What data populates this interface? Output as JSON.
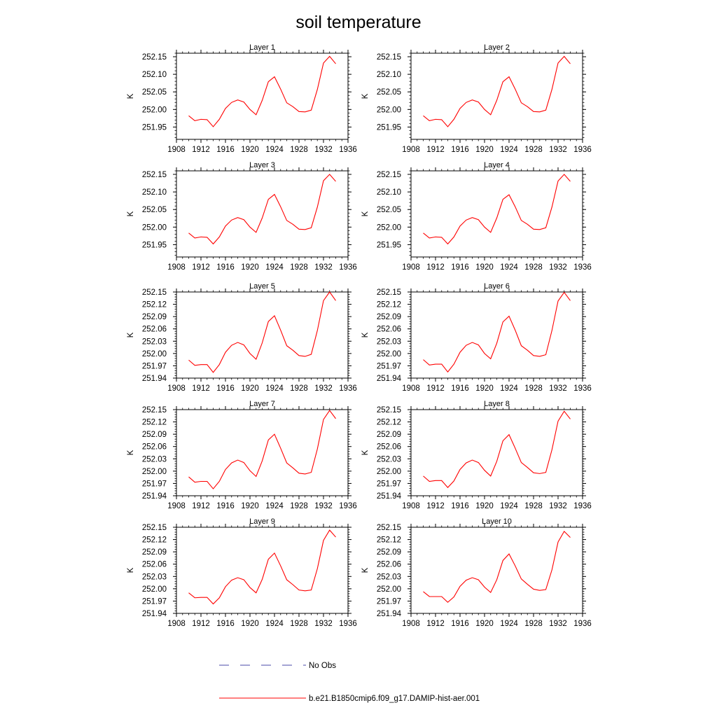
{
  "figure_title": "soil temperature",
  "colors": {
    "model": "#ff0000",
    "obs": "#4a4aa8",
    "axis": "#000000"
  },
  "legend": [
    {
      "label": "No Obs",
      "style": "dashed",
      "color": "#4a4aa8"
    },
    {
      "label": "b.e21.B1850cmip6.f09_g17.DAMIP-hist-aer.001",
      "style": "solid",
      "color": "#ff0000"
    }
  ],
  "chart_data": [
    {
      "type": "line",
      "title": "Layer 1",
      "ylabel": "K",
      "xlim": [
        1908,
        1936
      ],
      "ylim": [
        251.915,
        252.16
      ],
      "xticks": [
        "1908",
        "1912",
        "1916",
        "1920",
        "1924",
        "1928",
        "1932",
        "1936"
      ],
      "yticks": [
        "251.95",
        "252.00",
        "252.05",
        "252.10",
        "252.15"
      ],
      "series": [
        {
          "x": [
            1910,
            1911,
            1912,
            1913,
            1914,
            1915,
            1916,
            1917,
            1918,
            1919,
            1920,
            1921,
            1922,
            1923,
            1924,
            1925,
            1926,
            1927,
            1928,
            1929,
            1930,
            1931,
            1932,
            1933,
            1934
          ],
          "y": [
            251.982,
            251.968,
            251.972,
            251.971,
            251.951,
            251.972,
            252.003,
            252.02,
            252.027,
            252.021,
            252.0,
            251.985,
            252.026,
            252.079,
            252.093,
            252.058,
            252.019,
            252.008,
            251.994,
            251.993,
            251.998,
            252.057,
            252.132,
            252.151,
            252.13
          ]
        }
      ]
    },
    {
      "type": "line",
      "title": "Layer 2",
      "ylabel": "K",
      "xlim": [
        1908,
        1936
      ],
      "ylim": [
        251.915,
        252.16
      ],
      "xticks": [
        "1908",
        "1912",
        "1916",
        "1920",
        "1924",
        "1928",
        "1932",
        "1936"
      ],
      "yticks": [
        "251.95",
        "252.00",
        "252.05",
        "252.10",
        "252.15"
      ],
      "series": [
        {
          "x": [
            1910,
            1911,
            1912,
            1913,
            1914,
            1915,
            1916,
            1917,
            1918,
            1919,
            1920,
            1921,
            1922,
            1923,
            1924,
            1925,
            1926,
            1927,
            1928,
            1929,
            1930,
            1931,
            1932,
            1933,
            1934
          ],
          "y": [
            251.982,
            251.968,
            251.972,
            251.971,
            251.951,
            251.972,
            252.003,
            252.02,
            252.027,
            252.021,
            252.0,
            251.985,
            252.026,
            252.079,
            252.093,
            252.058,
            252.019,
            252.008,
            251.994,
            251.993,
            251.998,
            252.057,
            252.132,
            252.151,
            252.13
          ]
        }
      ]
    },
    {
      "type": "line",
      "title": "Layer 3",
      "ylabel": "K",
      "xlim": [
        1908,
        1936
      ],
      "ylim": [
        251.915,
        252.16
      ],
      "xticks": [
        "1908",
        "1912",
        "1916",
        "1920",
        "1924",
        "1928",
        "1932",
        "1936"
      ],
      "yticks": [
        "251.95",
        "252.00",
        "252.05",
        "252.10",
        "252.15"
      ],
      "series": [
        {
          "x": [
            1910,
            1911,
            1912,
            1913,
            1914,
            1915,
            1916,
            1917,
            1918,
            1919,
            1920,
            1921,
            1922,
            1923,
            1924,
            1925,
            1926,
            1927,
            1928,
            1929,
            1930,
            1931,
            1932,
            1933,
            1934
          ],
          "y": [
            251.983,
            251.969,
            251.972,
            251.971,
            251.952,
            251.972,
            252.003,
            252.02,
            252.027,
            252.021,
            252.0,
            251.985,
            252.026,
            252.079,
            252.093,
            252.058,
            252.019,
            252.008,
            251.994,
            251.993,
            251.998,
            252.057,
            252.132,
            252.15,
            252.13
          ]
        }
      ]
    },
    {
      "type": "line",
      "title": "Layer 4",
      "ylabel": "K",
      "xlim": [
        1908,
        1936
      ],
      "ylim": [
        251.915,
        252.16
      ],
      "xticks": [
        "1908",
        "1912",
        "1916",
        "1920",
        "1924",
        "1928",
        "1932",
        "1936"
      ],
      "yticks": [
        "251.95",
        "252.00",
        "252.05",
        "252.10",
        "252.15"
      ],
      "series": [
        {
          "x": [
            1910,
            1911,
            1912,
            1913,
            1914,
            1915,
            1916,
            1917,
            1918,
            1919,
            1920,
            1921,
            1922,
            1923,
            1924,
            1925,
            1926,
            1927,
            1928,
            1929,
            1930,
            1931,
            1932,
            1933,
            1934
          ],
          "y": [
            251.983,
            251.969,
            251.972,
            251.971,
            251.952,
            251.972,
            252.003,
            252.02,
            252.027,
            252.021,
            252.0,
            251.985,
            252.026,
            252.079,
            252.092,
            252.058,
            252.019,
            252.008,
            251.994,
            251.993,
            251.998,
            252.057,
            252.131,
            252.15,
            252.13
          ]
        }
      ]
    },
    {
      "type": "line",
      "title": "Layer 5",
      "ylabel": "K",
      "xlim": [
        1908,
        1936
      ],
      "ylim": [
        251.94,
        252.15
      ],
      "xticks": [
        "1908",
        "1912",
        "1916",
        "1920",
        "1924",
        "1928",
        "1932",
        "1936"
      ],
      "yticks": [
        "251.94",
        "251.97",
        "252.00",
        "252.03",
        "252.06",
        "252.09",
        "252.12",
        "252.15"
      ],
      "series": [
        {
          "x": [
            1910,
            1911,
            1912,
            1913,
            1914,
            1915,
            1916,
            1917,
            1918,
            1919,
            1920,
            1921,
            1922,
            1923,
            1924,
            1925,
            1926,
            1927,
            1928,
            1929,
            1930,
            1931,
            1932,
            1933,
            1934
          ],
          "y": [
            251.984,
            251.971,
            251.973,
            251.973,
            251.954,
            251.973,
            252.003,
            252.02,
            252.027,
            252.021,
            252.0,
            251.986,
            252.026,
            252.078,
            252.092,
            252.057,
            252.019,
            252.008,
            251.995,
            251.993,
            251.998,
            252.056,
            252.129,
            252.15,
            252.129
          ]
        }
      ]
    },
    {
      "type": "line",
      "title": "Layer 6",
      "ylabel": "K",
      "xlim": [
        1908,
        1936
      ],
      "ylim": [
        251.94,
        252.15
      ],
      "xticks": [
        "1908",
        "1912",
        "1916",
        "1920",
        "1924",
        "1928",
        "1932",
        "1936"
      ],
      "yticks": [
        "251.94",
        "251.97",
        "252.00",
        "252.03",
        "252.06",
        "252.09",
        "252.12",
        "252.15"
      ],
      "series": [
        {
          "x": [
            1910,
            1911,
            1912,
            1913,
            1914,
            1915,
            1916,
            1917,
            1918,
            1919,
            1920,
            1921,
            1922,
            1923,
            1924,
            1925,
            1926,
            1927,
            1928,
            1929,
            1930,
            1931,
            1932,
            1933,
            1934
          ],
          "y": [
            251.985,
            251.972,
            251.974,
            251.974,
            251.955,
            251.974,
            252.003,
            252.02,
            252.027,
            252.021,
            252.0,
            251.987,
            252.025,
            252.077,
            252.091,
            252.057,
            252.019,
            252.008,
            251.995,
            251.993,
            251.997,
            252.056,
            252.128,
            252.149,
            252.129
          ]
        }
      ]
    },
    {
      "type": "line",
      "title": "Layer 7",
      "ylabel": "K",
      "xlim": [
        1908,
        1936
      ],
      "ylim": [
        251.94,
        252.15
      ],
      "xticks": [
        "1908",
        "1912",
        "1916",
        "1920",
        "1924",
        "1928",
        "1932",
        "1936"
      ],
      "yticks": [
        "251.94",
        "251.97",
        "252.00",
        "252.03",
        "252.06",
        "252.09",
        "252.12",
        "252.15"
      ],
      "series": [
        {
          "x": [
            1910,
            1911,
            1912,
            1913,
            1914,
            1915,
            1916,
            1917,
            1918,
            1919,
            1920,
            1921,
            1922,
            1923,
            1924,
            1925,
            1926,
            1927,
            1928,
            1929,
            1930,
            1931,
            1932,
            1933,
            1934
          ],
          "y": [
            251.986,
            251.973,
            251.975,
            251.975,
            251.957,
            251.975,
            252.004,
            252.02,
            252.027,
            252.021,
            252.001,
            251.987,
            252.025,
            252.076,
            252.09,
            252.056,
            252.02,
            252.008,
            251.995,
            251.993,
            251.997,
            252.054,
            252.126,
            252.148,
            252.128
          ]
        }
      ]
    },
    {
      "type": "line",
      "title": "Layer 8",
      "ylabel": "K",
      "xlim": [
        1908,
        1936
      ],
      "ylim": [
        251.94,
        252.15
      ],
      "xticks": [
        "1908",
        "1912",
        "1916",
        "1920",
        "1924",
        "1928",
        "1932",
        "1936"
      ],
      "yticks": [
        "251.94",
        "251.97",
        "252.00",
        "252.03",
        "252.06",
        "252.09",
        "252.12",
        "252.15"
      ],
      "series": [
        {
          "x": [
            1910,
            1911,
            1912,
            1913,
            1914,
            1915,
            1916,
            1917,
            1918,
            1919,
            1920,
            1921,
            1922,
            1923,
            1924,
            1925,
            1926,
            1927,
            1928,
            1929,
            1930,
            1931,
            1932,
            1933,
            1934
          ],
          "y": [
            251.988,
            251.975,
            251.977,
            251.977,
            251.96,
            251.976,
            252.004,
            252.02,
            252.027,
            252.021,
            252.002,
            251.988,
            252.024,
            252.074,
            252.089,
            252.056,
            252.021,
            252.009,
            251.996,
            251.994,
            251.997,
            252.052,
            252.122,
            252.146,
            252.127
          ]
        }
      ]
    },
    {
      "type": "line",
      "title": "Layer 9",
      "ylabel": "K",
      "xlim": [
        1908,
        1936
      ],
      "ylim": [
        251.94,
        252.15
      ],
      "xticks": [
        "1908",
        "1912",
        "1916",
        "1920",
        "1924",
        "1928",
        "1932",
        "1936"
      ],
      "yticks": [
        "251.94",
        "251.97",
        "252.00",
        "252.03",
        "252.06",
        "252.09",
        "252.12",
        "252.15"
      ],
      "series": [
        {
          "x": [
            1910,
            1911,
            1912,
            1913,
            1914,
            1915,
            1916,
            1917,
            1918,
            1919,
            1920,
            1921,
            1922,
            1923,
            1924,
            1925,
            1926,
            1927,
            1928,
            1929,
            1930,
            1931,
            1932,
            1933,
            1934
          ],
          "y": [
            251.99,
            251.978,
            251.979,
            251.979,
            251.963,
            251.978,
            252.005,
            252.021,
            252.027,
            252.022,
            252.003,
            251.99,
            252.023,
            252.072,
            252.087,
            252.056,
            252.022,
            252.01,
            251.997,
            251.995,
            251.997,
            252.049,
            252.118,
            252.143,
            252.126
          ]
        }
      ]
    },
    {
      "type": "line",
      "title": "Layer 10",
      "ylabel": "K",
      "xlim": [
        1908,
        1936
      ],
      "ylim": [
        251.94,
        252.15
      ],
      "xticks": [
        "1908",
        "1912",
        "1916",
        "1920",
        "1924",
        "1928",
        "1932",
        "1936"
      ],
      "yticks": [
        "251.94",
        "251.97",
        "252.00",
        "252.03",
        "252.06",
        "252.09",
        "252.12",
        "252.15"
      ],
      "series": [
        {
          "x": [
            1910,
            1911,
            1912,
            1913,
            1914,
            1915,
            1916,
            1917,
            1918,
            1919,
            1920,
            1921,
            1922,
            1923,
            1924,
            1925,
            1926,
            1927,
            1928,
            1929,
            1930,
            1931,
            1932,
            1933,
            1934
          ],
          "y": [
            251.993,
            251.981,
            251.981,
            251.981,
            251.967,
            251.98,
            252.006,
            252.021,
            252.027,
            252.022,
            252.004,
            251.991,
            252.022,
            252.069,
            252.085,
            252.056,
            252.024,
            252.011,
            251.999,
            251.996,
            251.998,
            252.046,
            252.114,
            252.14,
            252.125
          ]
        }
      ]
    }
  ]
}
